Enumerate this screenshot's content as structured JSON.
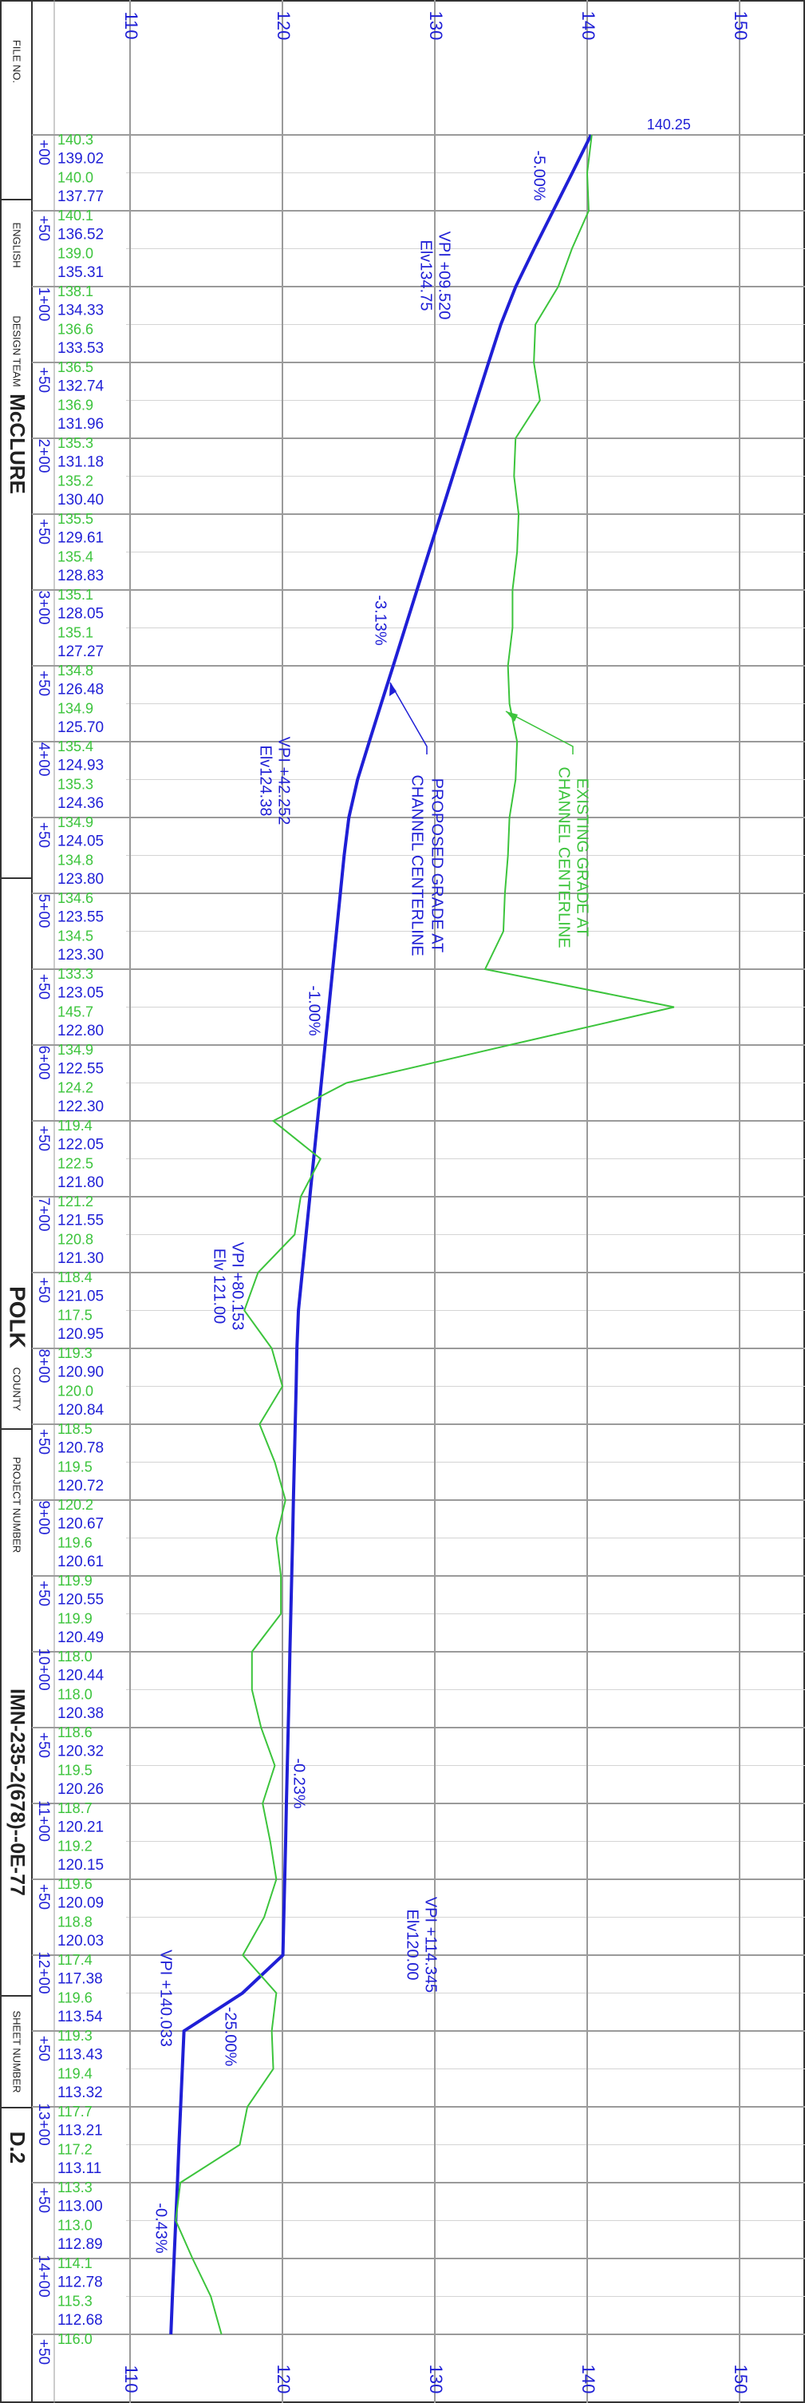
{
  "title_block": {
    "file_no": "FILE NO.",
    "units": "ENGLISH",
    "design_team_label": "DESIGN TEAM",
    "design_team": "McCLURE",
    "county": "POLK",
    "county_label": "COUNTY",
    "project_label": "PROJECT NUMBER",
    "project": "IMN-235-2(678)--0E-77",
    "sheet_label": "SHEET NUMBER",
    "sheet": "D.2"
  },
  "chart_data": {
    "type": "line",
    "x": [
      0,
      25,
      50,
      75,
      100,
      125,
      150,
      175,
      200,
      225,
      250,
      275,
      300,
      325,
      350,
      375,
      400,
      425,
      450,
      475,
      500,
      525,
      550,
      575,
      600,
      625,
      650,
      675,
      700,
      725,
      750,
      775,
      800,
      825,
      850,
      875,
      900,
      925,
      950,
      975,
      1000,
      1025,
      1050,
      1075,
      1100,
      1125,
      1150,
      1175,
      1200,
      1225,
      1250,
      1275,
      1300,
      1325,
      1350,
      1375,
      1400,
      1425,
      1450
    ],
    "xlim": [
      0,
      1450
    ],
    "xticks": [
      {
        "value": 0,
        "label": "+00"
      },
      {
        "value": 50,
        "label": "+50"
      },
      {
        "value": 100,
        "label": "1+00"
      },
      {
        "value": 150,
        "label": "+50"
      },
      {
        "value": 200,
        "label": "2+00"
      },
      {
        "value": 250,
        "label": "+50"
      },
      {
        "value": 300,
        "label": "3+00"
      },
      {
        "value": 350,
        "label": "+50"
      },
      {
        "value": 400,
        "label": "4+00"
      },
      {
        "value": 450,
        "label": "+50"
      },
      {
        "value": 500,
        "label": "5+00"
      },
      {
        "value": 550,
        "label": "+50"
      },
      {
        "value": 600,
        "label": "6+00"
      },
      {
        "value": 650,
        "label": "+50"
      },
      {
        "value": 700,
        "label": "7+00"
      },
      {
        "value": 750,
        "label": "+50"
      },
      {
        "value": 800,
        "label": "8+00"
      },
      {
        "value": 850,
        "label": "+50"
      },
      {
        "value": 900,
        "label": "9+00"
      },
      {
        "value": 950,
        "label": "+50"
      },
      {
        "value": 1000,
        "label": "10+00"
      },
      {
        "value": 1050,
        "label": "+50"
      },
      {
        "value": 1100,
        "label": "11+00"
      },
      {
        "value": 1150,
        "label": "+50"
      },
      {
        "value": 1200,
        "label": "12+00"
      },
      {
        "value": 1250,
        "label": "+50"
      },
      {
        "value": 1300,
        "label": "13+00"
      },
      {
        "value": 1350,
        "label": "+50"
      },
      {
        "value": 1400,
        "label": "14+00"
      },
      {
        "value": 1450,
        "label": "+50"
      }
    ],
    "ylim": [
      110,
      150
    ],
    "yticks": [
      110,
      120,
      130,
      140,
      150
    ],
    "grid": true,
    "series": [
      {
        "color": "#1f1fd6",
        "values": [
          140.25,
          139.02,
          137.77,
          136.52,
          135.31,
          134.33,
          133.53,
          132.74,
          131.96,
          131.18,
          130.4,
          129.61,
          128.83,
          128.05,
          127.27,
          126.48,
          125.7,
          124.93,
          124.36,
          124.05,
          123.8,
          123.55,
          123.3,
          123.05,
          122.8,
          122.55,
          122.3,
          122.05,
          121.8,
          121.55,
          121.3,
          121.05,
          120.95,
          120.9,
          120.84,
          120.78,
          120.72,
          120.67,
          120.61,
          120.55,
          120.49,
          120.44,
          120.38,
          120.32,
          120.26,
          120.21,
          120.15,
          120.09,
          120.03,
          117.38,
          113.54,
          113.43,
          113.32,
          113.21,
          113.11,
          113.0,
          112.89,
          112.78,
          112.68
        ],
        "value_labels": [
          "140.25",
          "139.02",
          "137.77",
          "136.52",
          "135.31",
          "134.33",
          "133.53",
          "132.74",
          "131.96",
          "131.18",
          "130.40",
          "129.61",
          "128.83",
          "128.05",
          "127.27",
          "126.48",
          "125.70",
          "124.93",
          "124.36",
          "124.05",
          "123.80",
          "123.55",
          "123.30",
          "123.05",
          "122.80",
          "122.55",
          "122.30",
          "122.05",
          "121.80",
          "121.55",
          "121.30",
          "121.05",
          "120.95",
          "120.90",
          "120.84",
          "120.78",
          "120.72",
          "120.67",
          "120.61",
          "120.55",
          "120.49",
          "120.44",
          "120.38",
          "120.32",
          "120.26",
          "120.21",
          "120.15",
          "120.09",
          "120.03",
          "117.38",
          "113.54",
          "113.43",
          "113.32",
          "113.21",
          "113.11",
          "113.00",
          "112.89",
          "112.78",
          "112.68"
        ]
      },
      {
        "color": "#3cc43c",
        "values": [
          140.3,
          140.0,
          140.1,
          139.0,
          138.1,
          136.6,
          136.5,
          136.9,
          135.3,
          135.2,
          135.5,
          135.4,
          135.1,
          135.1,
          134.8,
          134.9,
          135.4,
          135.3,
          134.9,
          134.8,
          134.6,
          134.5,
          133.3,
          145.7,
          134.9,
          124.2,
          119.4,
          122.5,
          121.2,
          120.8,
          118.4,
          117.5,
          119.3,
          120.0,
          118.5,
          119.5,
          120.2,
          119.6,
          119.9,
          119.9,
          118.0,
          118.0,
          118.6,
          119.5,
          118.7,
          119.2,
          119.6,
          118.8,
          117.4,
          119.6,
          119.3,
          119.4,
          117.7,
          117.2,
          113.3,
          113.0,
          114.1,
          115.3,
          116.0
        ],
        "value_labels": [
          "140.3",
          "140.0",
          "140.1",
          "139.0",
          "138.1",
          "136.6",
          "136.5",
          "136.9",
          "135.3",
          "135.2",
          "135.5",
          "135.4",
          "135.1",
          "135.1",
          "134.8",
          "134.9",
          "135.4",
          "135.3",
          "134.9",
          "134.8",
          "134.6",
          "134.5",
          "133.3",
          "145.7",
          "134.9",
          "124.2",
          "119.4",
          "122.5",
          "121.2",
          "120.8",
          "118.4",
          "117.5",
          "119.3",
          "120.0",
          "118.5",
          "119.5",
          "120.2",
          "119.6",
          "119.9",
          "119.9",
          "118.0",
          "118.0",
          "118.6",
          "119.5",
          "118.7",
          "119.2",
          "119.6",
          "118.8",
          "117.4",
          "119.6",
          "119.3",
          "119.4",
          "117.7",
          "117.2",
          "113.3",
          "113.0",
          "114.1",
          "115.3",
          "116.0"
        ]
      }
    ],
    "annotations": [
      "-5.00%",
      "VPI +09.520",
      "Elv134.75",
      "-3.13%",
      "VPI +42.252",
      "Elv124.38",
      "PROPOSED GRADE AT",
      "CHANNEL CENTERLINE",
      "EXISTING GRADE AT",
      "CHANNEL CENTERLINE",
      "-1.00%",
      "VPI +80.153",
      "Elv 121.00",
      "-0.23%",
      "VPI +114.345",
      "Elv120.00",
      "VPI +140.033",
      "-25.00%",
      "-0.43%"
    ]
  }
}
